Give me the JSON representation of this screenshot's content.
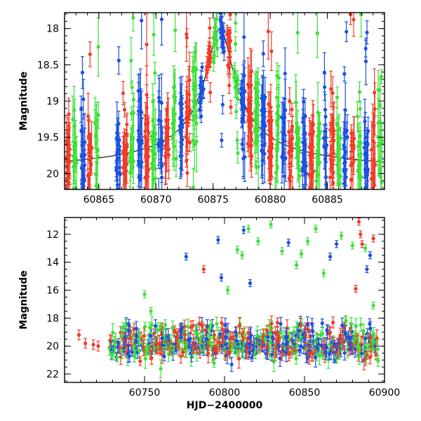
{
  "colors": {
    "red": "#f03c28",
    "green": "#3ee03a",
    "blue": "#1c50e0",
    "model_line": "#000000"
  },
  "chart_data": [
    {
      "id": "top",
      "type": "scatter",
      "title": "",
      "xlabel": "",
      "ylabel": "Magnitude",
      "xlim": [
        60862,
        60890
      ],
      "ylim": [
        20.22,
        17.78
      ],
      "y_inverted": true,
      "xticks": [
        60865,
        60870,
        60875,
        60880,
        60885
      ],
      "yticks": [
        18,
        18.5,
        19,
        19.5,
        20
      ],
      "yticklabels": [
        "18",
        "18.5",
        "19",
        "19.5",
        "20"
      ],
      "series": [
        {
          "color": "#f03c28",
          "marker": "circle",
          "error_bars": true
        },
        {
          "color": "#3ee03a",
          "marker": "circle",
          "error_bars": true
        },
        {
          "color": "#1c50e0",
          "marker": "circle",
          "error_bars": true
        }
      ],
      "model_curve": {
        "baseline_mag": 20.0,
        "peak_mag": 18.0,
        "peak_x": 60875.6
      },
      "visit_epochs": [
        60862.3,
        60862.9,
        60863.6,
        60864.2,
        60864.8,
        60866.7,
        60867.3,
        60867.9,
        60868.6,
        60869.2,
        60869.8,
        60870.4,
        60871.0,
        60871.6,
        60872.2,
        60872.8,
        60873.4,
        60874.0,
        60874.6,
        60875.2,
        60875.8,
        60876.4,
        60877.0,
        60877.6,
        60878.2,
        60878.8,
        60879.4,
        60880.0,
        60880.6,
        60881.2,
        60881.8,
        60882.4,
        60883.0,
        60883.6,
        60884.2,
        60884.8,
        60885.4,
        60886.0,
        60886.6,
        60887.2,
        60887.8,
        60888.4,
        60889.0,
        60889.6
      ]
    },
    {
      "id": "bottom",
      "type": "scatter",
      "title": "",
      "xlabel": "HJD−2400000",
      "ylabel": "Magnitude",
      "xlim": [
        60700,
        60900
      ],
      "ylim": [
        22.6,
        10.8
      ],
      "y_inverted": true,
      "xticks": [
        60750,
        60800,
        60850,
        60900
      ],
      "yticks": [
        12,
        14,
        16,
        18,
        20,
        22
      ],
      "yticklabels": [
        "12",
        "14",
        "16",
        "18",
        "20",
        "22"
      ],
      "series": [
        {
          "color": "#f03c28",
          "marker": "circle",
          "error_bars": true
        },
        {
          "color": "#3ee03a",
          "marker": "circle",
          "error_bars": true
        },
        {
          "color": "#1c50e0",
          "marker": "circle",
          "error_bars": true
        }
      ],
      "early_points": [
        {
          "x": 60709,
          "y": 19.2
        },
        {
          "x": 60713,
          "y": 19.8
        },
        {
          "x": 60718,
          "y": 19.9
        },
        {
          "x": 60721,
          "y": 20.0
        }
      ],
      "outliers": [
        {
          "x": 60750,
          "y": 16.3,
          "color": "#3ee03a"
        },
        {
          "x": 60754,
          "y": 17.5,
          "color": "#3ee03a"
        },
        {
          "x": 60776,
          "y": 13.6,
          "color": "#1c50e0"
        },
        {
          "x": 60787,
          "y": 14.5,
          "color": "#f03c28"
        },
        {
          "x": 60796,
          "y": 12.4,
          "color": "#1c50e0"
        },
        {
          "x": 60798,
          "y": 15.1,
          "color": "#1c50e0"
        },
        {
          "x": 60802,
          "y": 16.0,
          "color": "#3ee03a"
        },
        {
          "x": 60808,
          "y": 13.1,
          "color": "#3ee03a"
        },
        {
          "x": 60811,
          "y": 13.5,
          "color": "#3ee03a"
        },
        {
          "x": 60812,
          "y": 11.7,
          "color": "#1c50e0"
        },
        {
          "x": 60815,
          "y": 11.6,
          "color": "#3ee03a"
        },
        {
          "x": 60816,
          "y": 15.5,
          "color": "#1c50e0"
        },
        {
          "x": 60821,
          "y": 12.5,
          "color": "#3ee03a"
        },
        {
          "x": 60829,
          "y": 11.3,
          "color": "#3ee03a"
        },
        {
          "x": 60836,
          "y": 13.2,
          "color": "#3ee03a"
        },
        {
          "x": 60840,
          "y": 12.6,
          "color": "#1c50e0"
        },
        {
          "x": 60845,
          "y": 14.2,
          "color": "#3ee03a"
        },
        {
          "x": 60848,
          "y": 13.4,
          "color": "#3ee03a"
        },
        {
          "x": 60852,
          "y": 12.5,
          "color": "#3ee03a"
        },
        {
          "x": 60857,
          "y": 11.6,
          "color": "#3ee03a"
        },
        {
          "x": 60862,
          "y": 14.8,
          "color": "#3ee03a"
        },
        {
          "x": 60866,
          "y": 13.6,
          "color": "#1c50e0"
        },
        {
          "x": 60870,
          "y": 12.7,
          "color": "#1c50e0"
        },
        {
          "x": 60873,
          "y": 12.1,
          "color": "#3ee03a"
        },
        {
          "x": 60880,
          "y": 12.8,
          "color": "#3ee03a"
        },
        {
          "x": 60882,
          "y": 15.9,
          "color": "#f03c28"
        },
        {
          "x": 60884,
          "y": 11.1,
          "color": "#f03c28"
        },
        {
          "x": 60885,
          "y": 12.0,
          "color": "#f03c28"
        },
        {
          "x": 60886,
          "y": 12.7,
          "color": "#f03c28"
        },
        {
          "x": 60888,
          "y": 13.0,
          "color": "#3ee03a"
        },
        {
          "x": 60889,
          "y": 14.5,
          "color": "#1c50e0"
        },
        {
          "x": 60891,
          "y": 13.5,
          "color": "#1c50e0"
        },
        {
          "x": 60893,
          "y": 12.3,
          "color": "#f03c28"
        },
        {
          "x": 60893,
          "y": 17.1,
          "color": "#3ee03a"
        }
      ]
    }
  ]
}
